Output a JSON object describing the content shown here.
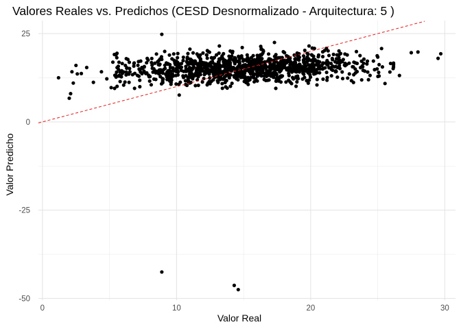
{
  "chart_data": {
    "type": "scatter",
    "title": "Valores Reales vs. Predichos (CESD Desnormalizado - Arquitectura: 5 )",
    "xlabel": "Valor Real",
    "ylabel": "Valor Predicho",
    "xlim": [
      -0.3,
      30.8
    ],
    "ylim": [
      -50.5,
      28.7
    ],
    "x_ticks": [
      0,
      10,
      20,
      30
    ],
    "y_ticks": [
      -50,
      -25,
      0,
      25
    ],
    "x_minor_ticks": [
      5,
      15,
      25
    ],
    "y_minor_ticks": [
      -37.5,
      -12.5,
      12.5
    ],
    "grid": true,
    "reference_line": {
      "type": "identity",
      "x": [
        -0.3,
        28.5
      ],
      "y": [
        -0.3,
        28.5
      ],
      "color": "#e41a1c",
      "style": "dashed"
    },
    "point_color": "#000000",
    "outliers": [
      {
        "x": 8.9,
        "y": 24.8
      },
      {
        "x": 8.9,
        "y": -42.5
      },
      {
        "x": 14.3,
        "y": -46.3
      },
      {
        "x": 14.6,
        "y": -47.5
      }
    ],
    "scatter_cloud": {
      "n_points": 1100,
      "x_range": [
        1.0,
        29.7
      ],
      "y_center": 15.2,
      "y_spread": 2.8,
      "trend_slope": 0.1,
      "sparse_low_points": [
        {
          "x": 1.2,
          "y": 12.5
        },
        {
          "x": 2.0,
          "y": 6.7
        },
        {
          "x": 2.1,
          "y": 8.0
        },
        {
          "x": 2.2,
          "y": 14.2
        },
        {
          "x": 2.3,
          "y": 11.0
        },
        {
          "x": 2.5,
          "y": 16.0
        },
        {
          "x": 2.6,
          "y": 13.6
        },
        {
          "x": 2.9,
          "y": 13.7
        },
        {
          "x": 3.3,
          "y": 15.4
        },
        {
          "x": 3.8,
          "y": 11.2
        },
        {
          "x": 4.4,
          "y": 14.2
        },
        {
          "x": 4.8,
          "y": 12.2
        },
        {
          "x": 10.2,
          "y": 7.6
        },
        {
          "x": 17.3,
          "y": 22.5
        },
        {
          "x": 27.5,
          "y": 19.6
        },
        {
          "x": 28.0,
          "y": 19.8
        },
        {
          "x": 29.5,
          "y": 18.0
        },
        {
          "x": 29.7,
          "y": 19.3
        }
      ]
    }
  }
}
